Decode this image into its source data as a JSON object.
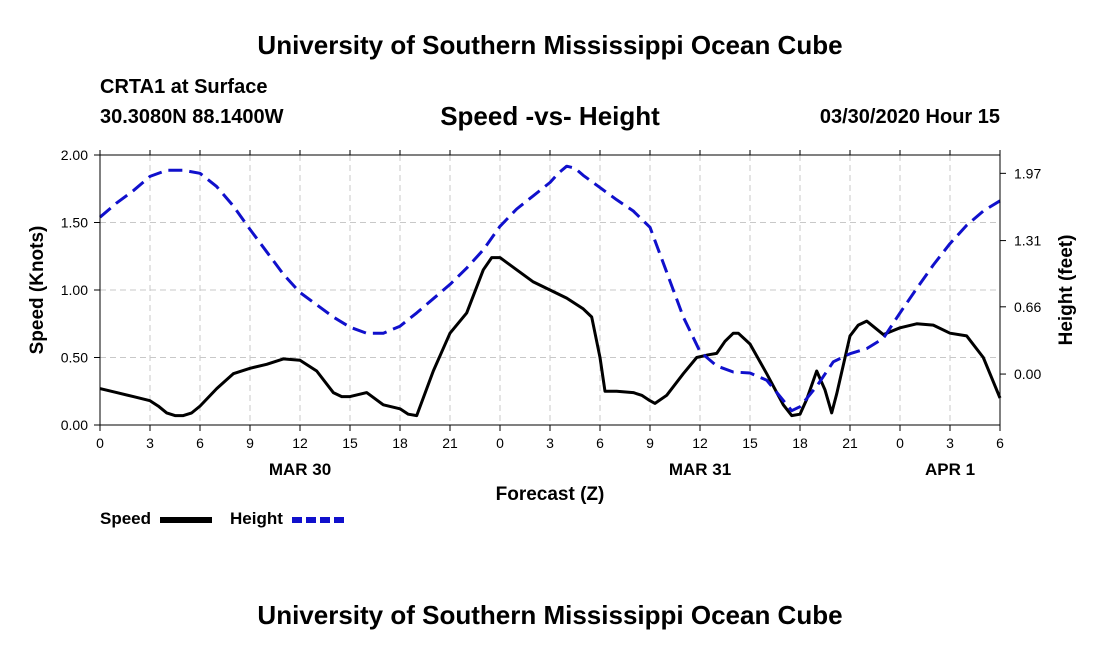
{
  "header": {
    "title": "University of Southern Mississippi Ocean Cube",
    "station": "CRTA1 at Surface",
    "coords": "30.3080N 88.1400W",
    "date_hour": "03/30/2020 Hour 15"
  },
  "footer": {
    "title": "University of Southern Mississippi Ocean Cube"
  },
  "colors": {
    "speed": "#000000",
    "height": "#1010cc",
    "grid": "#c8c8c8"
  },
  "chart_data": {
    "type": "line",
    "title": "Speed -vs- Height",
    "xlabel": "Forecast (Z)",
    "ylabel": "Speed (Knots)",
    "y2label": "Height (feet)",
    "x_range_hours": [
      0,
      54
    ],
    "ylim": [
      0,
      2.0
    ],
    "y2lim": [
      -0.5,
      2.15
    ],
    "x_ticks": [
      {
        "h": 0,
        "label": "0"
      },
      {
        "h": 3,
        "label": "3"
      },
      {
        "h": 6,
        "label": "6"
      },
      {
        "h": 9,
        "label": "9"
      },
      {
        "h": 12,
        "label": "12"
      },
      {
        "h": 15,
        "label": "15"
      },
      {
        "h": 18,
        "label": "18"
      },
      {
        "h": 21,
        "label": "21"
      },
      {
        "h": 24,
        "label": "0"
      },
      {
        "h": 27,
        "label": "3"
      },
      {
        "h": 30,
        "label": "6"
      },
      {
        "h": 33,
        "label": "9"
      },
      {
        "h": 36,
        "label": "12"
      },
      {
        "h": 39,
        "label": "15"
      },
      {
        "h": 42,
        "label": "18"
      },
      {
        "h": 45,
        "label": "21"
      },
      {
        "h": 48,
        "label": "0"
      },
      {
        "h": 51,
        "label": "3"
      },
      {
        "h": 54,
        "label": "6"
      }
    ],
    "date_labels": [
      {
        "h": 12,
        "label": "MAR 30"
      },
      {
        "h": 36,
        "label": "MAR 31"
      },
      {
        "h": 51,
        "label": "APR 1"
      }
    ],
    "y_ticks": [
      "0.00",
      "0.50",
      "1.00",
      "1.50",
      "2.00"
    ],
    "y_tick_values": [
      0,
      0.5,
      1.0,
      1.5,
      2.0
    ],
    "y2_ticks": [
      "0.00",
      "0.66",
      "1.31",
      "1.97"
    ],
    "y2_tick_values": [
      0,
      0.66,
      1.31,
      1.97
    ],
    "legend": [
      {
        "label": "Speed",
        "style": "solid"
      },
      {
        "label": "Height",
        "style": "dashed"
      }
    ],
    "series": [
      {
        "name": "Speed",
        "axis": "left",
        "points": [
          [
            0,
            0.27
          ],
          [
            1,
            0.24
          ],
          [
            2,
            0.21
          ],
          [
            3,
            0.18
          ],
          [
            3.5,
            0.14
          ],
          [
            4,
            0.09
          ],
          [
            4.5,
            0.07
          ],
          [
            5,
            0.07
          ],
          [
            5.5,
            0.09
          ],
          [
            6,
            0.14
          ],
          [
            7,
            0.27
          ],
          [
            8,
            0.38
          ],
          [
            9,
            0.42
          ],
          [
            10,
            0.45
          ],
          [
            11,
            0.49
          ],
          [
            12,
            0.48
          ],
          [
            13,
            0.4
          ],
          [
            14,
            0.24
          ],
          [
            14.5,
            0.21
          ],
          [
            15,
            0.21
          ],
          [
            16,
            0.24
          ],
          [
            17,
            0.15
          ],
          [
            18,
            0.12
          ],
          [
            18.5,
            0.08
          ],
          [
            19,
            0.07
          ],
          [
            20,
            0.4
          ],
          [
            21,
            0.68
          ],
          [
            22,
            0.83
          ],
          [
            23,
            1.15
          ],
          [
            23.5,
            1.24
          ],
          [
            24,
            1.24
          ],
          [
            25,
            1.15
          ],
          [
            26,
            1.06
          ],
          [
            27,
            1.0
          ],
          [
            28,
            0.94
          ],
          [
            29,
            0.86
          ],
          [
            29.5,
            0.8
          ],
          [
            30,
            0.5
          ],
          [
            30.3,
            0.25
          ],
          [
            31,
            0.25
          ],
          [
            32,
            0.24
          ],
          [
            32.5,
            0.22
          ],
          [
            33,
            0.18
          ],
          [
            33.3,
            0.16
          ],
          [
            34,
            0.22
          ],
          [
            35,
            0.38
          ],
          [
            35.8,
            0.5
          ],
          [
            36.5,
            0.52
          ],
          [
            37,
            0.53
          ],
          [
            37.5,
            0.62
          ],
          [
            38,
            0.68
          ],
          [
            38.3,
            0.68
          ],
          [
            39,
            0.6
          ],
          [
            40,
            0.38
          ],
          [
            41,
            0.15
          ],
          [
            41.5,
            0.07
          ],
          [
            42,
            0.08
          ],
          [
            42.4,
            0.19
          ],
          [
            43,
            0.4
          ],
          [
            43.5,
            0.26
          ],
          [
            43.9,
            0.09
          ],
          [
            44.2,
            0.23
          ],
          [
            45,
            0.66
          ],
          [
            45.5,
            0.74
          ],
          [
            46,
            0.77
          ],
          [
            47,
            0.67
          ],
          [
            48,
            0.72
          ],
          [
            49,
            0.75
          ],
          [
            50,
            0.74
          ],
          [
            51,
            0.68
          ],
          [
            52,
            0.66
          ],
          [
            53,
            0.5
          ],
          [
            54,
            0.2
          ]
        ]
      },
      {
        "name": "Height",
        "axis": "right",
        "points": [
          [
            0,
            1.54
          ],
          [
            1,
            1.68
          ],
          [
            2,
            1.8
          ],
          [
            3,
            1.94
          ],
          [
            4,
            2.0
          ],
          [
            5,
            2.0
          ],
          [
            6,
            1.97
          ],
          [
            7,
            1.84
          ],
          [
            8,
            1.65
          ],
          [
            9,
            1.42
          ],
          [
            10,
            1.2
          ],
          [
            11,
            0.98
          ],
          [
            12,
            0.8
          ],
          [
            13,
            0.68
          ],
          [
            14,
            0.56
          ],
          [
            15,
            0.46
          ],
          [
            16,
            0.4
          ],
          [
            17,
            0.4
          ],
          [
            18,
            0.47
          ],
          [
            19,
            0.6
          ],
          [
            20,
            0.74
          ],
          [
            21,
            0.88
          ],
          [
            22,
            1.04
          ],
          [
            23,
            1.22
          ],
          [
            24,
            1.45
          ],
          [
            25,
            1.62
          ],
          [
            26,
            1.75
          ],
          [
            27,
            1.88
          ],
          [
            27.5,
            1.97
          ],
          [
            28,
            2.04
          ],
          [
            28.5,
            2.02
          ],
          [
            29,
            1.95
          ],
          [
            30,
            1.83
          ],
          [
            31,
            1.71
          ],
          [
            32,
            1.6
          ],
          [
            33,
            1.44
          ],
          [
            34,
            1.0
          ],
          [
            35,
            0.56
          ],
          [
            36,
            0.22
          ],
          [
            37,
            0.08
          ],
          [
            38,
            0.02
          ],
          [
            39,
            0.01
          ],
          [
            40,
            -0.06
          ],
          [
            41,
            -0.26
          ],
          [
            41.5,
            -0.36
          ],
          [
            42,
            -0.32
          ],
          [
            43,
            -0.12
          ],
          [
            44,
            0.12
          ],
          [
            45,
            0.2
          ],
          [
            46,
            0.25
          ],
          [
            47,
            0.35
          ],
          [
            48,
            0.6
          ],
          [
            49,
            0.84
          ],
          [
            50,
            1.07
          ],
          [
            51,
            1.28
          ],
          [
            52,
            1.46
          ],
          [
            53,
            1.6
          ],
          [
            54,
            1.7
          ]
        ]
      }
    ]
  }
}
